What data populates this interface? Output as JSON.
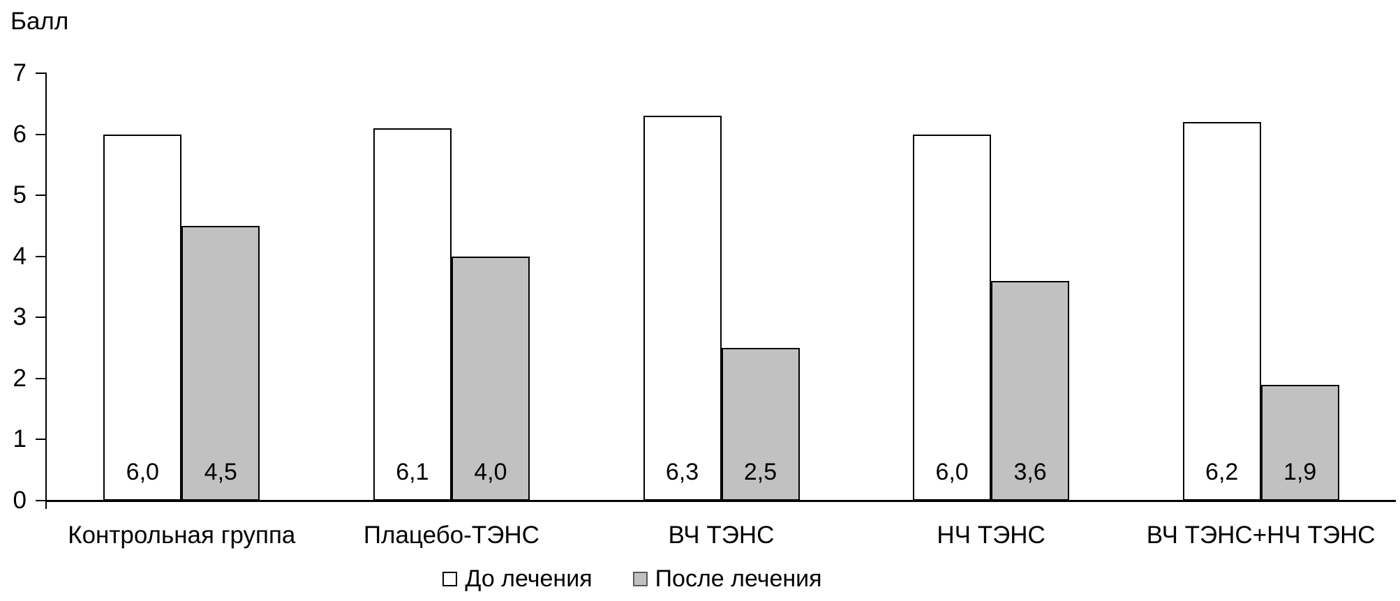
{
  "chart_data": {
    "type": "bar",
    "title": "",
    "ylabel": "Балл",
    "xlabel": "",
    "ylim": [
      0,
      7
    ],
    "yticks": [
      0,
      1,
      2,
      3,
      4,
      5,
      6,
      7
    ],
    "grid": false,
    "legend_position": "bottom",
    "categories": [
      "Контрольная группа",
      "Плацебо-ТЭНС",
      "ВЧ ТЭНС",
      "НЧ ТЭНС",
      "ВЧ ТЭНС+НЧ ТЭНС"
    ],
    "series": [
      {
        "name": "До лечения",
        "fill_color": "#FFFFFF",
        "border_color": "#000000",
        "values": [
          6.0,
          6.1,
          6.3,
          6.0,
          6.2
        ],
        "value_labels": [
          "6,0",
          "6,1",
          "6,3",
          "6,0",
          "6,2"
        ]
      },
      {
        "name": "После лечения",
        "fill_color": "#C1C1C1",
        "border_color": "#000000",
        "values": [
          4.5,
          4.0,
          2.5,
          3.6,
          1.9
        ],
        "value_labels": [
          "4,5",
          "4,0",
          "2,5",
          "3,6",
          "1,9"
        ]
      }
    ],
    "colors": {
      "axis": "#000000",
      "text": "#000000",
      "background": "#FFFFFF",
      "legend_swatch_before": "#FFFFFF",
      "legend_swatch_after": "#C1C1C1"
    }
  }
}
